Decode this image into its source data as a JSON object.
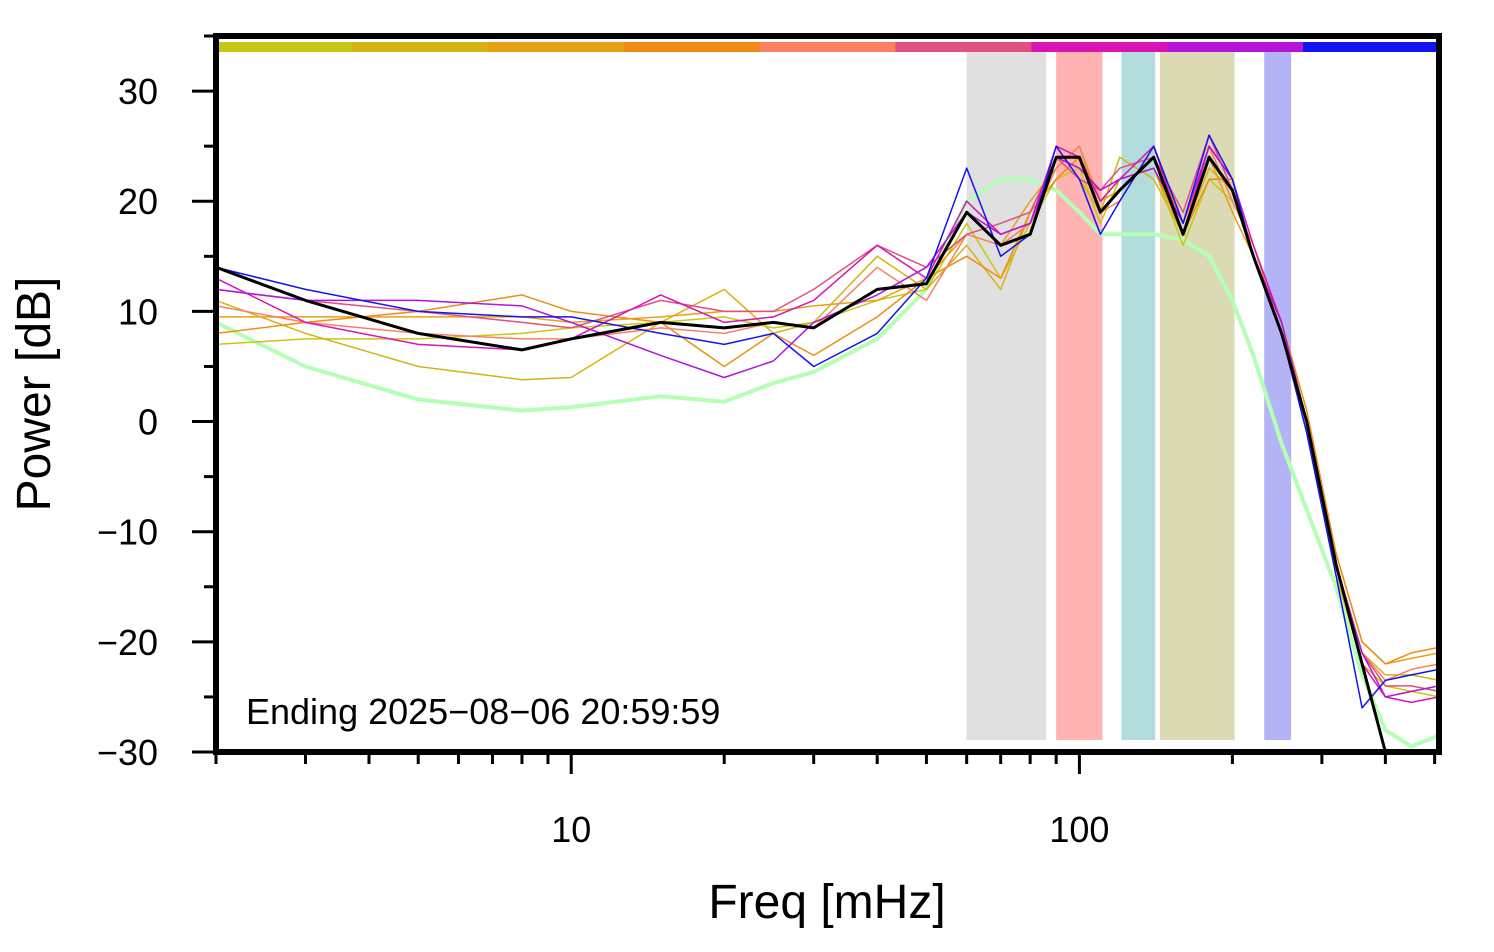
{
  "chart_data": {
    "type": "line",
    "title": "",
    "xlabel": "Freq [mHz]",
    "ylabel": "Power [dB]",
    "xscale": "log",
    "xlim": [
      2,
      510
    ],
    "ylim": [
      -30,
      35
    ],
    "x_ticks": [
      10,
      100
    ],
    "x_tick_labels": [
      "10",
      "100"
    ],
    "x_minor_ticks": [
      2,
      3,
      4,
      5,
      6,
      7,
      8,
      9,
      20,
      30,
      40,
      50,
      60,
      70,
      80,
      90,
      200,
      300,
      400,
      500
    ],
    "y_ticks": [
      30,
      20,
      10,
      0,
      -10,
      -20,
      -30
    ],
    "y_tick_labels": [
      "30",
      "20",
      "10",
      "0",
      "−10",
      "−20",
      "−30"
    ],
    "grid": false,
    "annotation": "Ending 2025−08−06 20:59:59",
    "top_band_colors": [
      "#c8c814",
      "#d4b414",
      "#e8a014",
      "#f08c14",
      "#fa8064",
      "#e05080",
      "#d814b4",
      "#b414d8",
      "#1414f0"
    ],
    "shaded_bands": [
      {
        "x0": 60,
        "x1": 86,
        "color": "#e0e0e0"
      },
      {
        "x0": 90,
        "x1": 111,
        "color": "#ffb3b3"
      },
      {
        "x0": 121,
        "x1": 141,
        "color": "#b3dcdc"
      },
      {
        "x0": 144,
        "x1": 202,
        "color": "#dcdab4"
      },
      {
        "x0": 231,
        "x1": 261,
        "color": "#b3b3f5"
      }
    ],
    "series": [
      {
        "color": "#b4ffb4",
        "width": 4,
        "x": [
          2,
          3,
          5,
          8,
          10,
          15,
          20,
          25,
          30,
          40,
          50,
          60,
          70,
          80,
          90,
          100,
          110,
          120,
          140,
          160,
          180,
          200,
          220,
          250,
          280,
          320,
          360,
          400,
          450,
          510
        ],
        "y": [
          9,
          5,
          2,
          1,
          1.3,
          2.3,
          1.8,
          3.5,
          4.5,
          7.5,
          12,
          20,
          22,
          22,
          21,
          19,
          17,
          17,
          17,
          16.5,
          15,
          11,
          6,
          -2,
          -8,
          -15,
          -23,
          -28,
          -29.5,
          -28.5
        ]
      },
      {
        "color": "#c8c814",
        "width": 1.5,
        "x": [
          2,
          3,
          5,
          8,
          10,
          15,
          20,
          25,
          30,
          40,
          50,
          60,
          70,
          80,
          90,
          100,
          110,
          120,
          140,
          160,
          180,
          200,
          220,
          250,
          280,
          320,
          360,
          400,
          450,
          510
        ],
        "y": [
          7,
          7.5,
          7.5,
          8,
          8.5,
          9,
          9.5,
          8.5,
          9,
          11,
          12,
          18,
          13,
          18,
          22,
          23,
          18,
          22,
          23,
          16,
          22,
          20,
          16,
          8,
          -1,
          -14,
          -22,
          -24,
          -24.5,
          -25
        ]
      },
      {
        "color": "#d4b414",
        "width": 1.5,
        "x": [
          2,
          3,
          5,
          8,
          10,
          15,
          20,
          25,
          30,
          40,
          50,
          60,
          70,
          80,
          90,
          100,
          110,
          120,
          140,
          160,
          180,
          200,
          220,
          250,
          280,
          320,
          360,
          400,
          450,
          510
        ],
        "y": [
          11,
          8,
          5,
          3.8,
          4,
          9,
          12,
          8,
          9,
          15,
          12,
          16,
          12,
          19,
          24,
          22,
          19,
          24,
          22,
          17,
          23,
          21,
          15,
          9,
          0,
          -13,
          -21,
          -23,
          -23,
          -23.5
        ]
      },
      {
        "color": "#e8a014",
        "width": 1.5,
        "x": [
          2,
          3,
          5,
          8,
          10,
          15,
          20,
          25,
          30,
          40,
          50,
          60,
          70,
          80,
          90,
          100,
          110,
          120,
          140,
          160,
          180,
          200,
          220,
          250,
          280,
          320,
          360,
          400,
          450,
          510
        ],
        "y": [
          9.5,
          9.5,
          9.5,
          9.5,
          9,
          9.5,
          10,
          10,
          10.5,
          11,
          13,
          17,
          16,
          20,
          23,
          25,
          20,
          21,
          24,
          18,
          24,
          19,
          15,
          8,
          0,
          -12,
          -20,
          -22,
          -21.5,
          -21
        ]
      },
      {
        "color": "#f08c14",
        "width": 1.5,
        "x": [
          2,
          3,
          5,
          8,
          10,
          15,
          20,
          25,
          30,
          40,
          50,
          60,
          70,
          80,
          90,
          100,
          110,
          120,
          140,
          160,
          180,
          200,
          220,
          250,
          280,
          320,
          360,
          400,
          450,
          510
        ],
        "y": [
          8,
          9,
          10,
          11.5,
          10,
          9,
          5,
          8,
          6,
          9.5,
          13,
          15,
          13,
          19,
          22,
          24,
          20,
          22,
          23,
          17,
          22,
          22,
          15,
          9,
          1,
          -12,
          -20,
          -22,
          -21,
          -20.5
        ]
      },
      {
        "color": "#fa8064",
        "width": 1.5,
        "x": [
          2,
          3,
          5,
          8,
          10,
          15,
          20,
          25,
          30,
          40,
          50,
          60,
          70,
          80,
          90,
          100,
          110,
          120,
          140,
          160,
          180,
          200,
          220,
          250,
          280,
          320,
          360,
          400,
          450,
          510
        ],
        "y": [
          10.5,
          9,
          8,
          7.5,
          7.5,
          8.5,
          8,
          9,
          8.5,
          14,
          11,
          17,
          16,
          18,
          23,
          25,
          19,
          20,
          25,
          18,
          25,
          20,
          16,
          8,
          0,
          -13,
          -21,
          -23.5,
          -22.5,
          -22
        ]
      },
      {
        "color": "#e05080",
        "width": 1.5,
        "x": [
          2,
          3,
          5,
          8,
          10,
          15,
          20,
          25,
          30,
          40,
          50,
          60,
          70,
          80,
          90,
          100,
          110,
          120,
          140,
          160,
          180,
          200,
          220,
          250,
          280,
          320,
          360,
          400,
          450,
          510
        ],
        "y": [
          12,
          11,
          10,
          9,
          8.5,
          11,
          10,
          10,
          12,
          16,
          14,
          17,
          18,
          19,
          24,
          22,
          21,
          23,
          24,
          19,
          26,
          21,
          15,
          8,
          -1,
          -13,
          -21,
          -24,
          -24,
          -24.5
        ]
      },
      {
        "color": "#d814b4",
        "width": 1.5,
        "x": [
          2,
          3,
          5,
          8,
          10,
          15,
          20,
          25,
          30,
          40,
          50,
          60,
          70,
          80,
          90,
          100,
          110,
          120,
          140,
          160,
          180,
          200,
          220,
          250,
          280,
          320,
          360,
          400,
          450,
          510
        ],
        "y": [
          13,
          9,
          7,
          6.5,
          7.5,
          11.5,
          9,
          9.5,
          11,
          16,
          13,
          20,
          17,
          18,
          25,
          24,
          20,
          22,
          25,
          17,
          25,
          22,
          16,
          9,
          0,
          -13,
          -22,
          -25,
          -25.5,
          -25
        ]
      },
      {
        "color": "#b414d8",
        "width": 1.5,
        "x": [
          2,
          3,
          5,
          8,
          10,
          15,
          20,
          25,
          30,
          40,
          50,
          60,
          70,
          80,
          90,
          100,
          110,
          120,
          140,
          160,
          180,
          200,
          220,
          250,
          280,
          320,
          360,
          400,
          450,
          510
        ],
        "y": [
          12,
          11,
          11,
          10.5,
          9,
          6,
          4,
          5.5,
          9,
          11.5,
          14,
          19,
          17,
          18,
          24,
          23,
          21,
          22,
          23,
          18,
          25,
          22,
          15,
          9,
          0,
          -13,
          -21,
          -25,
          -24.5,
          -24
        ]
      },
      {
        "color": "#1414f0",
        "width": 1.5,
        "x": [
          2,
          3,
          5,
          8,
          10,
          15,
          20,
          25,
          30,
          40,
          50,
          60,
          70,
          80,
          90,
          100,
          110,
          120,
          140,
          160,
          180,
          200,
          220,
          250,
          280,
          320,
          360,
          400,
          450,
          510
        ],
        "y": [
          14,
          12,
          10,
          9.5,
          9.5,
          8,
          7,
          8,
          5,
          8,
          13,
          23,
          15,
          17,
          25,
          22,
          17,
          20,
          25,
          18,
          26,
          22,
          15,
          8,
          -1,
          -14,
          -26,
          -23.5,
          -23,
          -22.5
        ]
      },
      {
        "color": "#000000",
        "width": 3,
        "x": [
          2,
          3,
          5,
          8,
          10,
          15,
          20,
          25,
          30,
          40,
          50,
          60,
          70,
          80,
          90,
          100,
          110,
          120,
          140,
          160,
          180,
          200,
          220,
          250,
          280,
          320,
          360,
          400,
          450,
          510
        ],
        "y": [
          14,
          11,
          8,
          6.5,
          7.5,
          9,
          8.5,
          9,
          8.5,
          12,
          12.5,
          19,
          16,
          17,
          24,
          24,
          19,
          21,
          24,
          17,
          24,
          21,
          15,
          8,
          0,
          -13,
          -22,
          -30,
          -31,
          -31
        ]
      }
    ]
  }
}
